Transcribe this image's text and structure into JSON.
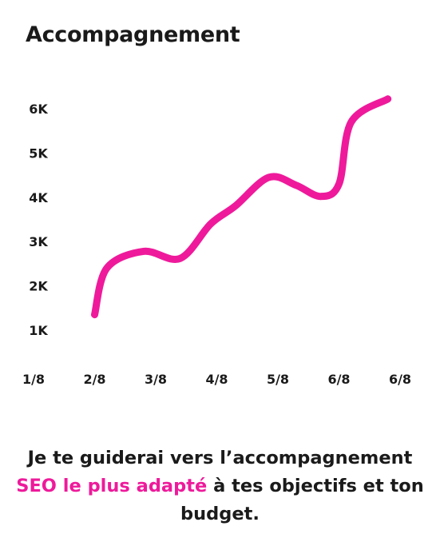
{
  "title": "Accompagnement",
  "accent_color": "#ee1a9b",
  "chart_data": {
    "type": "line",
    "title": "Accompagnement",
    "x_tick_labels": [
      "1/8",
      "2/8",
      "3/8",
      "4/8",
      "5/8",
      "6/8",
      "6/8"
    ],
    "y_tick_labels": [
      "1K",
      "2K",
      "3K",
      "4K",
      "5K",
      "6K"
    ],
    "ylim": [
      1000,
      6000
    ],
    "grid": false,
    "legend": "none",
    "series": [
      {
        "color": "#ee1a9b",
        "points": [
          {
            "x": 2.0,
            "y": 1350
          },
          {
            "x": 2.2,
            "y": 2400
          },
          {
            "x": 2.8,
            "y": 2780
          },
          {
            "x": 3.4,
            "y": 2620
          },
          {
            "x": 3.9,
            "y": 3400
          },
          {
            "x": 4.3,
            "y": 3800
          },
          {
            "x": 4.85,
            "y": 4450
          },
          {
            "x": 5.3,
            "y": 4270
          },
          {
            "x": 5.7,
            "y": 4020
          },
          {
            "x": 6.0,
            "y": 4300
          },
          {
            "x": 6.2,
            "y": 5700
          },
          {
            "x": 6.8,
            "y": 6220
          }
        ]
      }
    ]
  },
  "caption": {
    "line1": "Je te guiderai vers l’accompagnement",
    "highlight": "SEO le plus adapté",
    "line2_rest": " à tes objectifs et ton",
    "line3": "budget."
  }
}
